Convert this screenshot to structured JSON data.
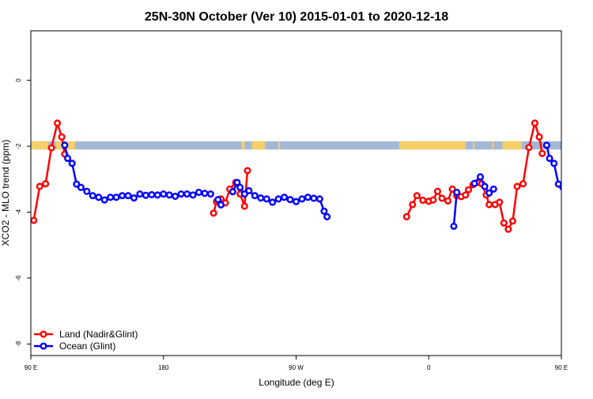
{
  "chart_data": {
    "type": "line",
    "title": "25N-30N October (Ver 10)   2015-01-01 to 2020-12-18",
    "xlabel": "Longitude (deg E)",
    "ylabel": "XCO2 - MLO trend (ppm)",
    "xlim": [
      90,
      450
    ],
    "ylim": [
      -8.35,
      1.5
    ],
    "xticks": [
      {
        "value": 90,
        "label": "90 E"
      },
      {
        "value": 180,
        "label": "180"
      },
      {
        "value": 270,
        "label": "90 W"
      },
      {
        "value": 360,
        "label": "0"
      },
      {
        "value": 450,
        "label": "90 E"
      }
    ],
    "yticks": [
      {
        "value": 0,
        "label": "0"
      },
      {
        "value": -2,
        "label": "-2"
      },
      {
        "value": -4,
        "label": "-4"
      },
      {
        "value": -6,
        "label": "-6"
      },
      {
        "value": -8,
        "label": "-8"
      }
    ],
    "grid": false,
    "legend_position": "bottom-left",
    "land_band": {
      "y_range": [
        -2.1,
        -1.85
      ],
      "land_color": "#f5d06a",
      "ocean_color": "#a4b8d6",
      "land_segments": [
        [
          90,
          102
        ],
        [
          107,
          120
        ],
        [
          233,
          235
        ],
        [
          240,
          249
        ],
        [
          258,
          259
        ],
        [
          340,
          385
        ],
        [
          390,
          391
        ],
        [
          403,
          404
        ],
        [
          410,
          423
        ]
      ]
    },
    "series": [
      {
        "name": "Land (Nadir&Glint)",
        "color": "#ff0000",
        "segments": [
          [
            [
              92,
              -4.25
            ],
            [
              96,
              -3.22
            ],
            [
              100,
              -3.14
            ],
            [
              104,
              -2.05
            ],
            [
              108,
              -1.3
            ],
            [
              111,
              -1.72
            ],
            [
              113,
              -2.24
            ]
          ],
          [
            [
              214,
              -4.03
            ],
            [
              216,
              -3.68
            ],
            [
              219,
              -3.6
            ],
            [
              222,
              -3.72
            ],
            [
              225,
              -3.3
            ],
            [
              229,
              -3.1
            ],
            [
              232,
              -3.45
            ],
            [
              235,
              -3.82
            ],
            [
              237,
              -2.74
            ]
          ],
          [
            [
              345,
              -4.14
            ],
            [
              349,
              -3.77
            ],
            [
              352,
              -3.5
            ],
            [
              356,
              -3.64
            ],
            [
              360,
              -3.67
            ],
            [
              363,
              -3.63
            ],
            [
              366,
              -3.37
            ],
            [
              369,
              -3.58
            ],
            [
              373,
              -3.66
            ],
            [
              376,
              -3.3
            ],
            [
              379,
              -3.5
            ],
            [
              382,
              -3.53
            ],
            [
              385,
              -3.48
            ],
            [
              387,
              -3.32
            ],
            [
              390,
              -3.17
            ],
            [
              393,
              -3.1
            ],
            [
              396,
              -3.14
            ],
            [
              399,
              -3.48
            ],
            [
              401,
              -3.77
            ],
            [
              405,
              -3.77
            ],
            [
              408,
              -3.7
            ],
            [
              411,
              -4.33
            ],
            [
              414,
              -4.52
            ],
            [
              417,
              -4.27
            ],
            [
              420,
              -3.22
            ],
            [
              424,
              -3.14
            ],
            [
              428,
              -2.04
            ],
            [
              432,
              -1.3
            ],
            [
              435,
              -1.72
            ],
            [
              437,
              -2.22
            ]
          ]
        ]
      },
      {
        "name": "Ocean (Glint)",
        "color": "#0000ff",
        "segments": [
          [
            [
              113,
              -1.97
            ],
            [
              115,
              -2.37
            ],
            [
              118,
              -2.52
            ],
            [
              121,
              -3.15
            ],
            [
              124,
              -3.25
            ],
            [
              128,
              -3.37
            ],
            [
              132,
              -3.5
            ],
            [
              136,
              -3.55
            ],
            [
              140,
              -3.63
            ],
            [
              144,
              -3.55
            ],
            [
              148,
              -3.55
            ],
            [
              152,
              -3.5
            ],
            [
              156,
              -3.5
            ],
            [
              160,
              -3.57
            ],
            [
              164,
              -3.45
            ],
            [
              168,
              -3.49
            ],
            [
              172,
              -3.47
            ],
            [
              176,
              -3.48
            ],
            [
              180,
              -3.45
            ],
            [
              184,
              -3.48
            ],
            [
              188,
              -3.52
            ],
            [
              192,
              -3.45
            ],
            [
              196,
              -3.45
            ],
            [
              200,
              -3.48
            ],
            [
              204,
              -3.4
            ],
            [
              208,
              -3.43
            ],
            [
              212,
              -3.45
            ]
          ],
          [
            [
              217,
              -3.62
            ],
            [
              219,
              -3.78
            ]
          ],
          [
            [
              227,
              -3.38
            ],
            [
              230,
              -3.1
            ],
            [
              232,
              -3.25
            ],
            [
              235,
              -3.45
            ],
            [
              238,
              -3.35
            ],
            [
              242,
              -3.5
            ],
            [
              246,
              -3.57
            ],
            [
              250,
              -3.6
            ],
            [
              254,
              -3.7
            ],
            [
              258,
              -3.6
            ],
            [
              262,
              -3.55
            ],
            [
              266,
              -3.62
            ],
            [
              270,
              -3.68
            ],
            [
              274,
              -3.6
            ],
            [
              278,
              -3.55
            ],
            [
              282,
              -3.58
            ],
            [
              286,
              -3.6
            ],
            [
              289,
              -3.97
            ],
            [
              291,
              -4.14
            ]
          ],
          [
            [
              377,
              -4.43
            ],
            [
              379,
              -3.4
            ]
          ],
          [
            [
              391,
              -3.13
            ],
            [
              395,
              -2.93
            ],
            [
              398,
              -3.22
            ],
            [
              401,
              -3.42
            ],
            [
              404,
              -3.3
            ]
          ],
          [
            [
              440,
              -1.97
            ],
            [
              442,
              -2.37
            ],
            [
              445,
              -2.52
            ],
            [
              448,
              -3.15
            ],
            [
              451,
              -3.25
            ],
            [
              455,
              -3.37
            ],
            [
              459,
              -3.5
            ],
            [
              463,
              -3.55
            ],
            [
              467,
              -3.63
            ],
            [
              471,
              -3.55
            ],
            [
              475,
              -3.55
            ],
            [
              479,
              -3.5
            ]
          ]
        ]
      }
    ]
  }
}
